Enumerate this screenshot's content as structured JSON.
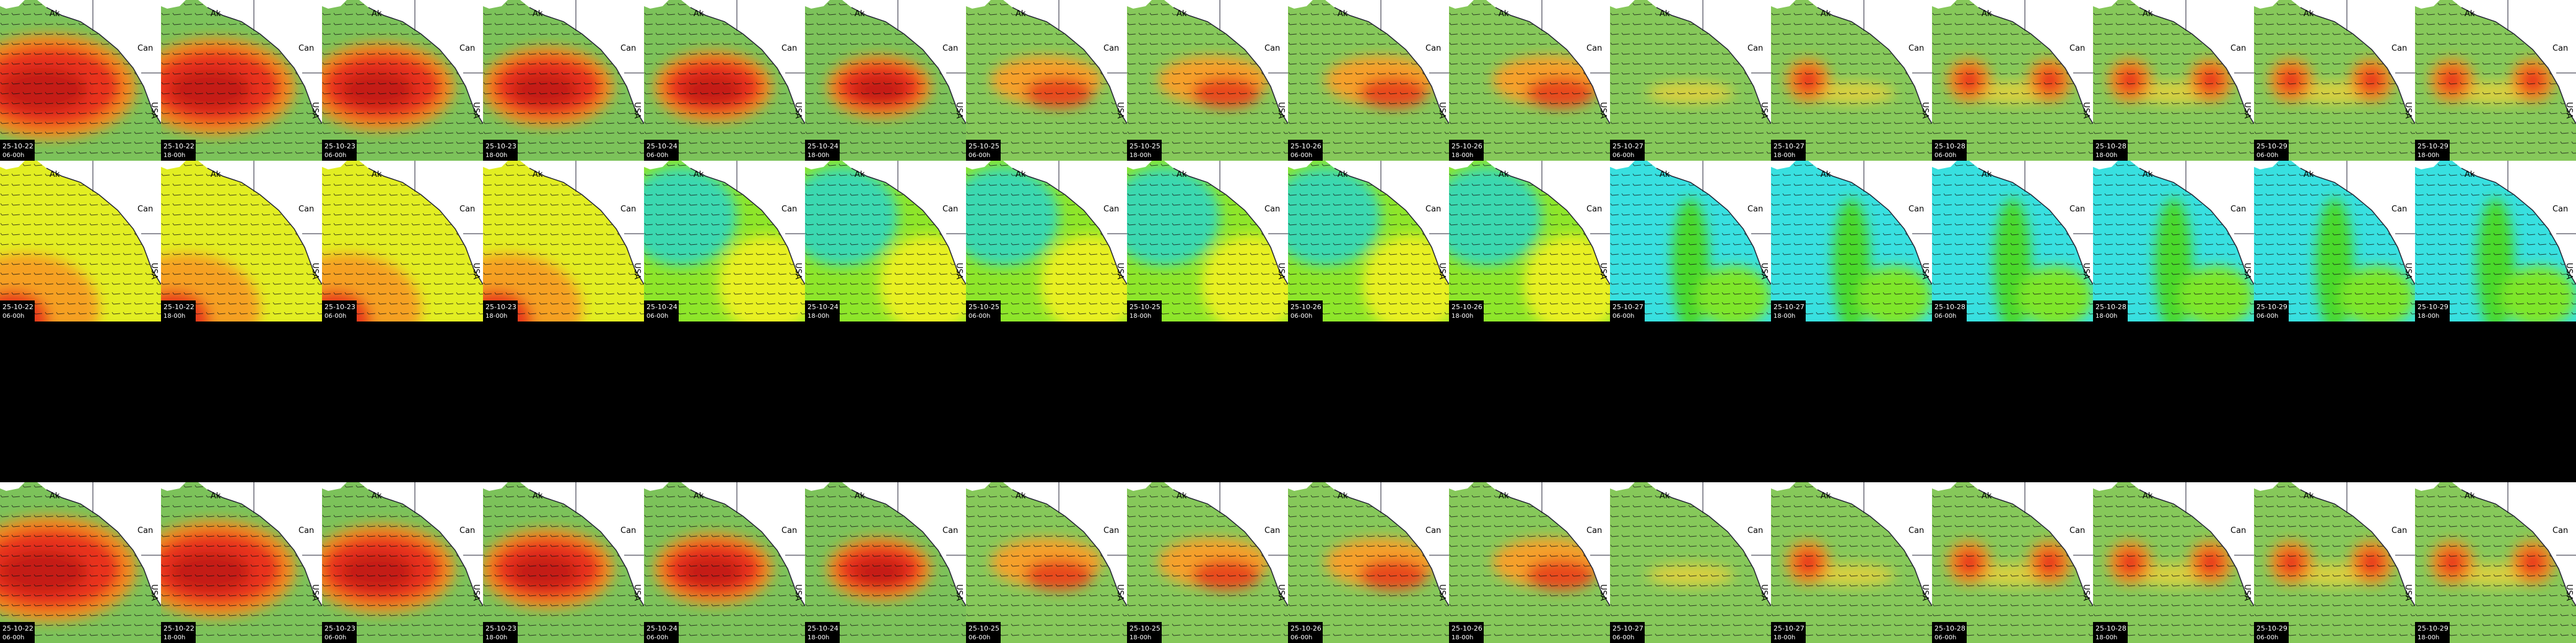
{
  "map_labels": {
    "alaska": "Ak",
    "canada": "Can",
    "usa": "USA"
  },
  "times": [
    {
      "date": "25-10-22",
      "hour": "06-00h"
    },
    {
      "date": "25-10-22",
      "hour": "18-00h"
    },
    {
      "date": "25-10-23",
      "hour": "06-00h"
    },
    {
      "date": "25-10-23",
      "hour": "18-00h"
    },
    {
      "date": "25-10-24",
      "hour": "06-00h"
    },
    {
      "date": "25-10-24",
      "hour": "18-00h"
    },
    {
      "date": "25-10-25",
      "hour": "06-00h"
    },
    {
      "date": "25-10-25",
      "hour": "18-00h"
    },
    {
      "date": "25-10-26",
      "hour": "06-00h"
    },
    {
      "date": "25-10-26",
      "hour": "18-00h"
    },
    {
      "date": "25-10-27",
      "hour": "06-00h"
    },
    {
      "date": "25-10-27",
      "hour": "18-00h"
    },
    {
      "date": "25-10-28",
      "hour": "06-00h"
    },
    {
      "date": "25-10-28",
      "hour": "18-00h"
    },
    {
      "date": "25-10-29",
      "hour": "06-00h"
    },
    {
      "date": "25-10-29",
      "hour": "18-00h"
    }
  ]
}
